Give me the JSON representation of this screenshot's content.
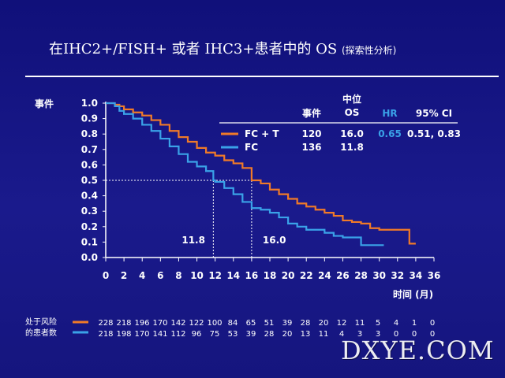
{
  "title": {
    "main": "在IHC2+/FISH+ 或者 IHC3+患者中的 OS",
    "sub": "(探索性分析)"
  },
  "chart_data": {
    "type": "line",
    "ylabel": "事件",
    "xlabel": "时间 (月)",
    "xlim": [
      0,
      36
    ],
    "ylim": [
      0,
      1.0
    ],
    "x_ticks": [
      0,
      2,
      4,
      6,
      8,
      10,
      12,
      14,
      16,
      18,
      20,
      22,
      24,
      26,
      28,
      30,
      32,
      34,
      36
    ],
    "y_ticks": [
      "0.0",
      "0.1",
      "0.2",
      "0.3",
      "0.4",
      "0.5",
      "0.6",
      "0.7",
      "0.8",
      "0.9",
      "1.0"
    ],
    "series": [
      {
        "name": "FC + T",
        "color": "#f07a28",
        "median": 16.0,
        "points": [
          [
            0,
            1.0
          ],
          [
            0.5,
            1.0
          ],
          [
            1,
            0.99
          ],
          [
            1.5,
            0.98
          ],
          [
            2,
            0.96
          ],
          [
            3,
            0.94
          ],
          [
            4,
            0.92
          ],
          [
            5,
            0.89
          ],
          [
            6,
            0.86
          ],
          [
            7,
            0.82
          ],
          [
            8,
            0.78
          ],
          [
            9,
            0.75
          ],
          [
            10,
            0.71
          ],
          [
            11,
            0.68
          ],
          [
            12,
            0.66
          ],
          [
            13,
            0.63
          ],
          [
            14,
            0.61
          ],
          [
            15,
            0.58
          ],
          [
            16,
            0.5
          ],
          [
            17,
            0.48
          ],
          [
            18,
            0.44
          ],
          [
            19,
            0.41
          ],
          [
            20,
            0.38
          ],
          [
            21,
            0.35
          ],
          [
            22,
            0.33
          ],
          [
            23,
            0.31
          ],
          [
            24,
            0.29
          ],
          [
            25,
            0.27
          ],
          [
            26,
            0.24
          ],
          [
            27,
            0.23
          ],
          [
            28,
            0.22
          ],
          [
            29,
            0.19
          ],
          [
            30,
            0.18
          ],
          [
            31,
            0.18
          ],
          [
            32,
            0.18
          ],
          [
            33,
            0.18
          ],
          [
            33.3,
            0.09
          ],
          [
            34,
            0.09
          ]
        ]
      },
      {
        "name": "FC",
        "color": "#3aa2e8",
        "median": 11.8,
        "points": [
          [
            0,
            1.0
          ],
          [
            0.5,
            1.0
          ],
          [
            1,
            0.98
          ],
          [
            1.5,
            0.95
          ],
          [
            2,
            0.93
          ],
          [
            3,
            0.9
          ],
          [
            4,
            0.86
          ],
          [
            5,
            0.82
          ],
          [
            6,
            0.77
          ],
          [
            7,
            0.72
          ],
          [
            8,
            0.67
          ],
          [
            9,
            0.62
          ],
          [
            10,
            0.59
          ],
          [
            11,
            0.56
          ],
          [
            11.8,
            0.5
          ],
          [
            12,
            0.49
          ],
          [
            13,
            0.45
          ],
          [
            14,
            0.41
          ],
          [
            15,
            0.36
          ],
          [
            16,
            0.32
          ],
          [
            17,
            0.31
          ],
          [
            18,
            0.29
          ],
          [
            19,
            0.26
          ],
          [
            20,
            0.22
          ],
          [
            21,
            0.2
          ],
          [
            22,
            0.18
          ],
          [
            23,
            0.18
          ],
          [
            24,
            0.16
          ],
          [
            25,
            0.14
          ],
          [
            26,
            0.13
          ],
          [
            27,
            0.13
          ],
          [
            28,
            0.08
          ],
          [
            29,
            0.08
          ],
          [
            30,
            0.08
          ],
          [
            30.5,
            0.08
          ]
        ]
      }
    ],
    "median_labels": [
      "11.8",
      "16.0"
    ],
    "reference_y": 0.5
  },
  "stats_table": {
    "headers": {
      "events": "事件",
      "median_top": "中位",
      "median_bottom": "OS",
      "hr": "HR",
      "ci": "95% CI"
    },
    "rows": [
      {
        "label": "FC + T",
        "events": "120",
        "median": "16.0",
        "hr": "0.65",
        "ci": "0.51, 0.83"
      },
      {
        "label": "FC",
        "events": "136",
        "median": "11.8",
        "hr": "",
        "ci": ""
      }
    ]
  },
  "at_risk": {
    "label_line1": "处于风险",
    "label_line2": "的患者数",
    "fct": [
      "228",
      "218",
      "196",
      "170",
      "142",
      "122",
      "100",
      "84",
      "65",
      "51",
      "39",
      "28",
      "20",
      "12",
      "11",
      "5",
      "4",
      "1",
      "0"
    ],
    "fc": [
      "218",
      "198",
      "170",
      "141",
      "112",
      "96",
      "75",
      "53",
      "39",
      "28",
      "20",
      "13",
      "11",
      "4",
      "3",
      "3",
      "0",
      "0",
      "0"
    ]
  },
  "watermark": "DXYE.COM"
}
